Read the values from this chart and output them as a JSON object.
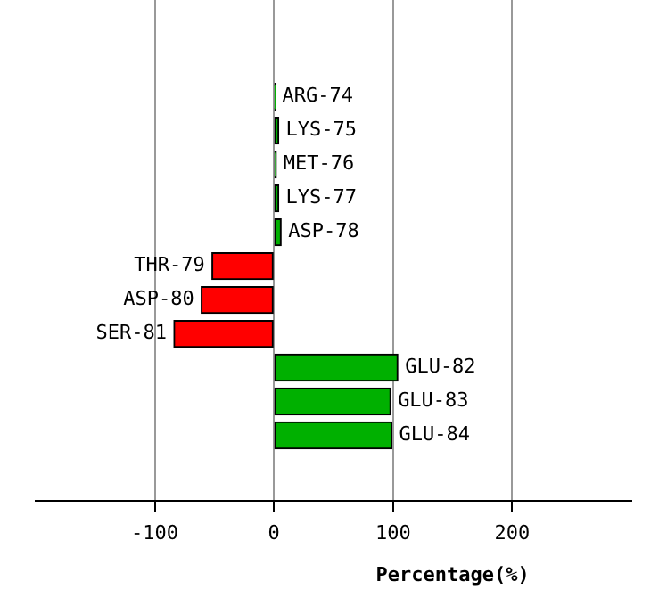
{
  "chart_data": {
    "type": "bar",
    "orientation": "horizontal",
    "xlabel": "Percentage(%)",
    "categories": [
      "ARG-74",
      "LYS-75",
      "MET-76",
      "LYS-77",
      "ASP-78",
      "THR-79",
      "ASP-80",
      "SER-81",
      "GLU-82",
      "GLU-83",
      "GLU-84"
    ],
    "values": [
      1,
      4,
      2,
      4,
      6,
      -52,
      -61,
      -84,
      104,
      98,
      99
    ],
    "colors": [
      "#00b000",
      "#00b000",
      "#00b000",
      "#00b000",
      "#00b000",
      "#ff0000",
      "#ff0000",
      "#ff0000",
      "#00b000",
      "#00b000",
      "#00b000"
    ],
    "xlim": [
      -200,
      300
    ],
    "xticks": [
      -100,
      0,
      100,
      200
    ],
    "grid": "x",
    "legend": false
  }
}
